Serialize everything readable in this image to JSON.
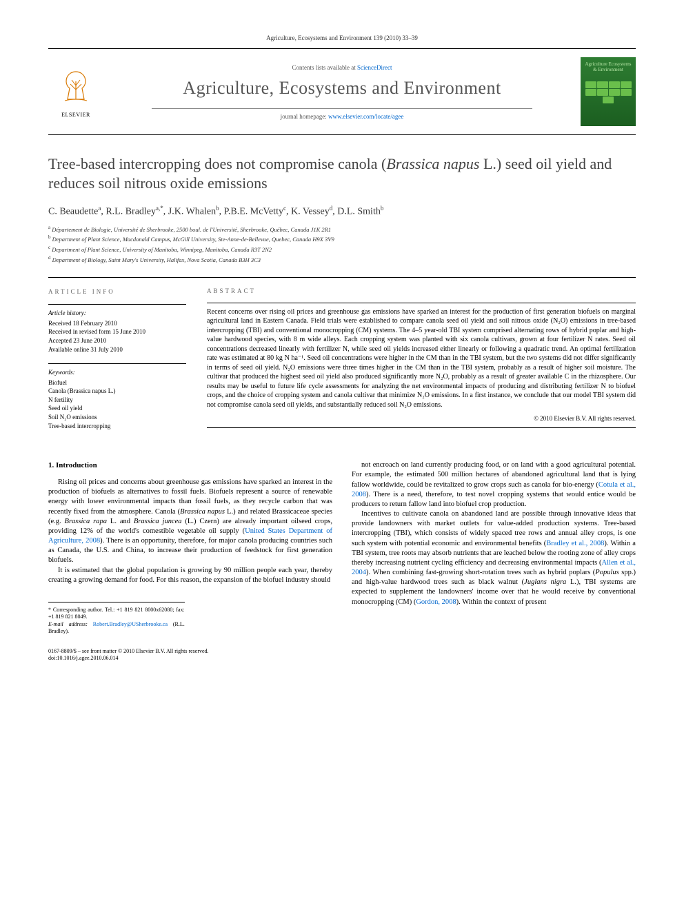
{
  "running_header": "Agriculture, Ecosystems and Environment 139 (2010) 33–39",
  "masthead": {
    "publisher": "ELSEVIER",
    "contents_prefix": "Contents lists available at ",
    "contents_link": "ScienceDirect",
    "journal": "Agriculture, Ecosystems and Environment",
    "homepage_prefix": "journal homepage: ",
    "homepage_url": "www.elsevier.com/locate/agee",
    "cover_text": "Agriculture Ecosystems & Environment"
  },
  "title_plain": "Tree-based intercropping does not compromise canola (",
  "title_italic": "Brassica napus",
  "title_tail": " L.) seed oil yield and reduces soil nitrous oxide emissions",
  "authors_html": "C. Beaudette<sup>a</sup>, R.L. Bradley<sup>a,*</sup>, J.K. Whalen<sup>b</sup>, P.B.E. McVetty<sup>c</sup>, K. Vessey<sup>d</sup>, D.L. Smith<sup>b</sup>",
  "affiliations": [
    "a Département de Biologie, Université de Sherbrooke, 2500 boul. de l'Université, Sherbrooke, Québec, Canada J1K 2R1",
    "b Department of Plant Science, Macdonald Campus, McGill University, Ste-Anne-de-Bellevue, Quebec, Canada H9X 3V9",
    "c Department of Plant Science, University of Manitoba, Winnipeg, Manitoba, Canada R3T 2N2",
    "d Department of Biology, Saint Mary's University, Halifax, Nova Scotia, Canada B3H 3C3"
  ],
  "article_info": {
    "header": "ARTICLE INFO",
    "history_head": "Article history:",
    "history": [
      "Received 18 February 2010",
      "Received in revised form 15 June 2010",
      "Accepted 23 June 2010",
      "Available online 31 July 2010"
    ],
    "keywords_head": "Keywords:",
    "keywords": [
      "Biofuel",
      "Canola (Brassica napus L.)",
      "N fertility",
      "Seed oil yield",
      "Soil N₂O emissions",
      "Tree-based intercropping"
    ]
  },
  "abstract": {
    "header": "ABSTRACT",
    "text": "Recent concerns over rising oil prices and greenhouse gas emissions have sparked an interest for the production of first generation biofuels on marginal agricultural land in Eastern Canada. Field trials were established to compare canola seed oil yield and soil nitrous oxide (N₂O) emissions in tree-based intercropping (TBI) and conventional monocropping (CM) systems. The 4–5 year-old TBI system comprised alternating rows of hybrid poplar and high-value hardwood species, with 8 m wide alleys. Each cropping system was planted with six canola cultivars, grown at four fertilizer N rates. Seed oil concentrations decreased linearly with fertilizer N, while seed oil yields increased either linearly or following a quadratic trend. An optimal fertilization rate was estimated at 80 kg N ha⁻¹. Seed oil concentrations were higher in the CM than in the TBI system, but the two systems did not differ significantly in terms of seed oil yield. N₂O emissions were three times higher in the CM than in the TBI system, probably as a result of higher soil moisture. The cultivar that produced the highest seed oil yield also produced significantly more N₂O, probably as a result of greater available C in the rhizosphere. Our results may be useful to future life cycle assessments for analyzing the net environmental impacts of producing and distributing fertilizer N to biofuel crops, and the choice of cropping system and canola cultivar that minimize N₂O emissions. In a first instance, we conclude that our model TBI system did not compromise canola seed oil yields, and substantially reduced soil N₂O emissions.",
    "copyright": "© 2010 Elsevier B.V. All rights reserved."
  },
  "intro": {
    "heading": "1. Introduction",
    "p1": "Rising oil prices and concerns about greenhouse gas emissions have sparked an interest in the production of biofuels as alternatives to fossil fuels. Biofuels represent a source of renewable energy with lower environmental impacts than fossil fuels, as they recycle carbon that was recently fixed from the atmosphere. Canola (",
    "p1_it1": "Brassica napus",
    "p1_mid1": " L.) and related Brassicaceae species (e.g. ",
    "p1_it2": "Brassica rapa",
    "p1_mid2": " L. and ",
    "p1_it3": "Brassica juncea",
    "p1_mid3": " (L.) Czern) are already important oilseed crops, providing 12% of the world's comestible vegetable oil supply (",
    "p1_ref1": "United States Department of Agriculture, 2008",
    "p1_tail": "). There is an opportunity, therefore, for major canola producing countries such as Canada, the U.S. and China, to increase their production of feedstock for first generation biofuels.",
    "p2": "It is estimated that the global population is growing by 90 million people each year, thereby creating a growing demand for food. For this reason, the expansion of the biofuel industry should",
    "p3": "not encroach on land currently producing food, or on land with a good agricultural potential. For example, the estimated 500 million hectares of abandoned agricultural land that is lying fallow worldwide, could be revitalized to grow crops such as canola for bio-energy (",
    "p3_ref": "Cotula et al., 2008",
    "p3_tail": "). There is a need, therefore, to test novel cropping systems that would entice would be producers to return fallow land into biofuel crop production.",
    "p4_a": "Incentives to cultivate canola on abandoned land are possible through innovative ideas that provide landowners with market outlets for value-added production systems. Tree-based intercropping (TBI), which consists of widely spaced tree rows and annual alley crops, is one such system with potential economic and environmental benefits (",
    "p4_ref1": "Bradley et al., 2008",
    "p4_b": "). Within a TBI system, tree roots may absorb nutrients that are leached below the rooting zone of alley crops thereby increasing nutrient cycling efficiency and decreasing environmental impacts (",
    "p4_ref2": "Allen et al., 2004",
    "p4_c": "). When combining fast-growing short-rotation trees such as hybrid poplars (",
    "p4_it1": "Populus",
    "p4_d": " spp.) and high-value hardwood trees such as black walnut (",
    "p4_it2": "Juglans nigra",
    "p4_e": " L.), TBI systems are expected to supplement the landowners' income over that he would receive by conventional monocropping (CM) (",
    "p4_ref3": "Gordon, 2008",
    "p4_f": "). Within the context of present"
  },
  "footnotes": {
    "corr": "* Corresponding author. Tel.: +1 819 821 8000x62080; fax: +1 819 821 8049.",
    "email_label": "E-mail address: ",
    "email": "Robert.Bradley@USherbrooke.ca",
    "email_tail": " (R.L. Bradley)."
  },
  "bottom": {
    "line1": "0167-8809/$ – see front matter © 2010 Elsevier B.V. All rights reserved.",
    "line2": "doi:10.1016/j.agee.2010.06.014"
  },
  "colors": {
    "link": "#0066cc",
    "text": "#000000",
    "journal_name": "#555555",
    "cover_bg": "#1b5e20"
  }
}
